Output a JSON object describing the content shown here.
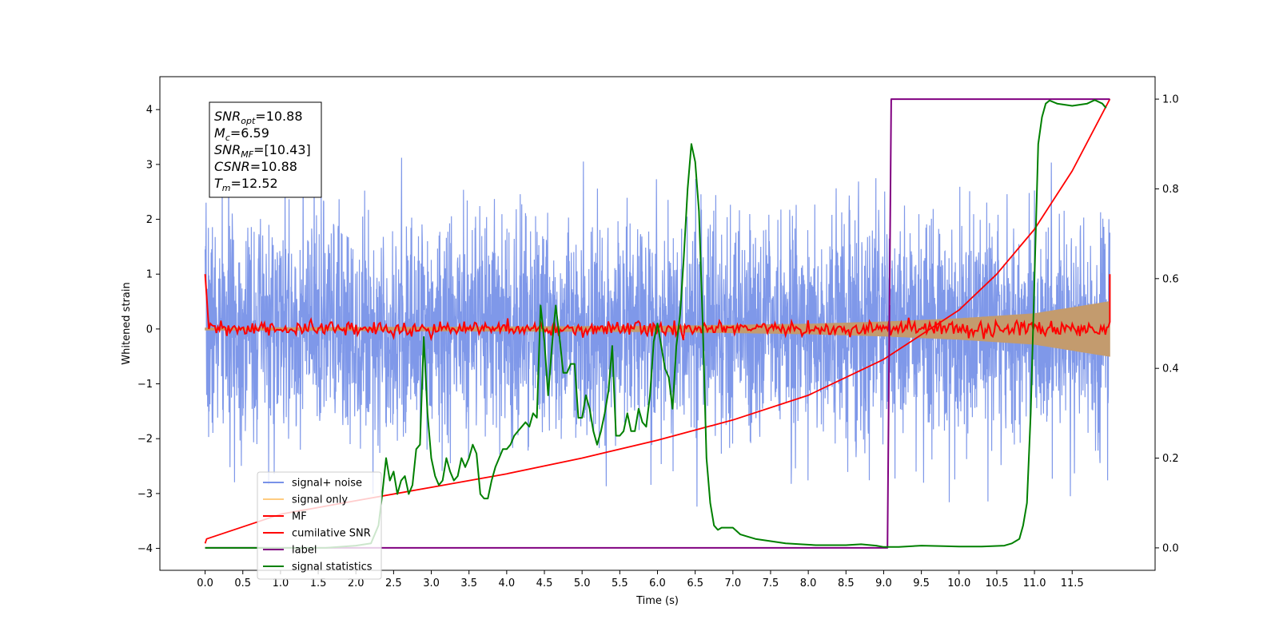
{
  "chart_data": {
    "type": "line",
    "title": "",
    "xlabel": "Time (s)",
    "ylabel": "Whitened strain",
    "xlim": [
      -0.6,
      12.6
    ],
    "ylim": [
      -4.4,
      4.6
    ],
    "y2lim": [
      -0.05,
      1.05
    ],
    "x_ticks": [
      0.0,
      0.5,
      1.0,
      1.5,
      2.0,
      2.5,
      3.0,
      3.5,
      4.0,
      4.5,
      5.0,
      5.5,
      6.0,
      6.5,
      7.0,
      7.5,
      8.0,
      8.5,
      9.0,
      9.5,
      10.0,
      10.5,
      11.0,
      11.5
    ],
    "x_tick_labels": [
      "0.0",
      "0.5",
      "1.0",
      "1.5",
      "2.0",
      "2.5",
      "3.0",
      "3.5",
      "4.0",
      "4.5",
      "5.0",
      "5.5",
      "6.0",
      "6.5",
      "7.0",
      "7.5",
      "8.0",
      "8.5",
      "9.0",
      "9.5",
      "10.0",
      "10.5",
      "11.0",
      "11.5"
    ],
    "y_ticks": [
      -4,
      -3,
      -2,
      -1,
      0,
      1,
      2,
      3,
      4
    ],
    "y_tick_labels": [
      "−4",
      "−3",
      "−2",
      "−1",
      "0",
      "1",
      "2",
      "3",
      "4"
    ],
    "y2_ticks": [
      0.0,
      0.2,
      0.4,
      0.6,
      0.8,
      1.0
    ],
    "y2_tick_labels": [
      "0.0",
      "0.2",
      "0.4",
      "0.6",
      "0.8",
      "1.0"
    ],
    "grid": false,
    "legend_position": "lower-left",
    "legend": [
      {
        "label": "signal+ noise",
        "color": "#7892e8"
      },
      {
        "label": "signal only",
        "color": "#ffcc80"
      },
      {
        "label": "MF",
        "color": "#ff0000"
      },
      {
        "label": "cumilative SNR",
        "color": "#ff0000"
      },
      {
        "label": "label",
        "color": "#800080"
      },
      {
        "label": "signal statistics",
        "color": "#008000"
      }
    ],
    "series": [
      {
        "name": "signal+ noise",
        "axis": "left",
        "style": "dense noise, approx range -4.0 to 4.2",
        "x_range": [
          0.0,
          12.0
        ],
        "amplitude_sigma": 1.0
      },
      {
        "name": "signal only",
        "axis": "left",
        "style": "chirp envelope",
        "x": [
          0.0,
          6.0,
          8.0,
          9.0,
          10.0,
          11.0,
          12.0
        ],
        "y_envelope": [
          0.02,
          0.05,
          0.09,
          0.13,
          0.19,
          0.28,
          0.5
        ]
      },
      {
        "name": "MF",
        "axis": "left",
        "style": "matched filter output",
        "x": [
          0.0,
          0.05,
          12.0,
          12.0
        ],
        "y": [
          1.0,
          0.0,
          0.0,
          1.0
        ],
        "noise_sigma": 0.07
      },
      {
        "name": "cumilative SNR",
        "axis": "right",
        "x": [
          0.0,
          0.02,
          1.0,
          2.0,
          3.0,
          4.0,
          5.0,
          6.0,
          7.0,
          8.0,
          9.0,
          10.0,
          10.5,
          11.0,
          11.5,
          12.0
        ],
        "y": [
          0.01,
          0.02,
          0.075,
          0.105,
          0.135,
          0.165,
          0.2,
          0.24,
          0.285,
          0.34,
          0.42,
          0.53,
          0.61,
          0.71,
          0.84,
          1.0
        ]
      },
      {
        "name": "label",
        "axis": "right",
        "x": [
          0.0,
          9.05,
          9.1,
          12.0
        ],
        "y": [
          0.0,
          0.0,
          1.0,
          1.0
        ]
      },
      {
        "name": "signal statistics",
        "axis": "right",
        "x": [
          0.0,
          1.6,
          2.0,
          2.2,
          2.3,
          2.35,
          2.4,
          2.45,
          2.5,
          2.55,
          2.6,
          2.65,
          2.7,
          2.75,
          2.8,
          2.85,
          2.9,
          2.95,
          3.0,
          3.05,
          3.1,
          3.15,
          3.2,
          3.25,
          3.3,
          3.35,
          3.4,
          3.45,
          3.5,
          3.55,
          3.6,
          3.65,
          3.7,
          3.75,
          3.8,
          3.85,
          3.9,
          3.95,
          4.0,
          4.05,
          4.1,
          4.15,
          4.2,
          4.25,
          4.3,
          4.35,
          4.4,
          4.45,
          4.5,
          4.55,
          4.6,
          4.65,
          4.7,
          4.75,
          4.8,
          4.85,
          4.9,
          4.95,
          5.0,
          5.05,
          5.1,
          5.15,
          5.2,
          5.25,
          5.3,
          5.35,
          5.4,
          5.45,
          5.5,
          5.55,
          5.6,
          5.65,
          5.7,
          5.75,
          5.8,
          5.85,
          5.9,
          5.95,
          6.0,
          6.05,
          6.1,
          6.15,
          6.2,
          6.25,
          6.3,
          6.35,
          6.4,
          6.45,
          6.5,
          6.55,
          6.6,
          6.65,
          6.7,
          6.75,
          6.8,
          6.85,
          6.9,
          6.95,
          7.0,
          7.1,
          7.2,
          7.3,
          7.5,
          7.7,
          7.9,
          8.1,
          8.3,
          8.5,
          8.7,
          8.9,
          9.0,
          9.2,
          9.5,
          9.8,
          10.0,
          10.3,
          10.6,
          10.7,
          10.8,
          10.85,
          10.9,
          10.95,
          11.0,
          11.05,
          11.1,
          11.15,
          11.2,
          11.3,
          11.5,
          11.7,
          11.8,
          11.9,
          11.95
        ],
        "y": [
          0.0,
          0.0,
          0.005,
          0.01,
          0.05,
          0.12,
          0.2,
          0.15,
          0.17,
          0.12,
          0.15,
          0.16,
          0.12,
          0.14,
          0.22,
          0.23,
          0.47,
          0.3,
          0.2,
          0.16,
          0.14,
          0.15,
          0.2,
          0.17,
          0.15,
          0.16,
          0.2,
          0.18,
          0.2,
          0.23,
          0.21,
          0.12,
          0.11,
          0.11,
          0.15,
          0.18,
          0.2,
          0.22,
          0.22,
          0.23,
          0.25,
          0.26,
          0.27,
          0.28,
          0.27,
          0.3,
          0.29,
          0.54,
          0.46,
          0.34,
          0.45,
          0.54,
          0.47,
          0.39,
          0.39,
          0.41,
          0.41,
          0.29,
          0.29,
          0.34,
          0.31,
          0.26,
          0.23,
          0.26,
          0.3,
          0.35,
          0.45,
          0.25,
          0.25,
          0.26,
          0.3,
          0.26,
          0.26,
          0.31,
          0.28,
          0.27,
          0.34,
          0.46,
          0.5,
          0.45,
          0.4,
          0.38,
          0.31,
          0.45,
          0.52,
          0.65,
          0.8,
          0.9,
          0.86,
          0.75,
          0.5,
          0.2,
          0.1,
          0.05,
          0.04,
          0.045,
          0.045,
          0.045,
          0.045,
          0.03,
          0.025,
          0.02,
          0.015,
          0.01,
          0.008,
          0.006,
          0.006,
          0.006,
          0.008,
          0.005,
          0.002,
          0.002,
          0.005,
          0.004,
          0.003,
          0.003,
          0.005,
          0.01,
          0.02,
          0.05,
          0.1,
          0.3,
          0.6,
          0.9,
          0.96,
          0.99,
          0.997,
          0.99,
          0.985,
          0.99,
          0.998,
          0.99,
          0.98
        ]
      }
    ],
    "annotation": {
      "lines": [
        {
          "main": "SNR",
          "sub": "opt",
          "rest": "=10.88"
        },
        {
          "main": "M",
          "sub": "c",
          "rest": "=6.59"
        },
        {
          "main": "SNR",
          "sub": "MF",
          "rest": "=[10.43]"
        },
        {
          "main": "CSNR",
          "sub": "",
          "rest": "=10.88"
        },
        {
          "main": "T",
          "sub": "m",
          "rest": "=12.52"
        }
      ]
    }
  }
}
